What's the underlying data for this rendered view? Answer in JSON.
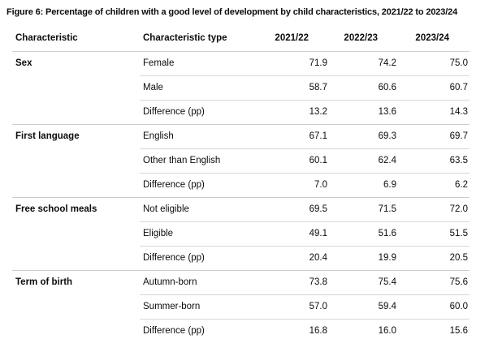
{
  "figure": {
    "title": "Figure 6: Percentage of children with a good level of development by child characteristics, 2021/22 to 2023/24"
  },
  "colors": {
    "text": "#0b0c0c",
    "row_border": "#d6d8d9",
    "group_border": "#cbcecf",
    "bottom_border": "#c6c9ca",
    "background": "#ffffff"
  },
  "chart_data": {
    "type": "table",
    "title": "Figure 6: Percentage of children with a good level of development by child characteristics, 2021/22 to 2023/24",
    "columns": [
      "Characteristic",
      "Characteristic type",
      "2021/22",
      "2022/23",
      "2023/24"
    ],
    "groups": [
      {
        "characteristic": "Sex",
        "rows": [
          {
            "type": "Female",
            "values": [
              "71.9",
              "74.2",
              "75.0"
            ]
          },
          {
            "type": "Male",
            "values": [
              "58.7",
              "60.6",
              "60.7"
            ]
          },
          {
            "type": "Difference (pp)",
            "values": [
              "13.2",
              "13.6",
              "14.3"
            ]
          }
        ]
      },
      {
        "characteristic": "First language",
        "rows": [
          {
            "type": "English",
            "values": [
              "67.1",
              "69.3",
              "69.7"
            ]
          },
          {
            "type": "Other than English",
            "values": [
              "60.1",
              "62.4",
              "63.5"
            ]
          },
          {
            "type": "Difference (pp)",
            "values": [
              "7.0",
              "6.9",
              "6.2"
            ]
          }
        ]
      },
      {
        "characteristic": "Free school meals",
        "rows": [
          {
            "type": "Not eligible",
            "values": [
              "69.5",
              "71.5",
              "72.0"
            ]
          },
          {
            "type": "Eligible",
            "values": [
              "49.1",
              "51.6",
              "51.5"
            ]
          },
          {
            "type": "Difference (pp)",
            "values": [
              "20.4",
              "19.9",
              "20.5"
            ]
          }
        ]
      },
      {
        "characteristic": "Term of birth",
        "rows": [
          {
            "type": "Autumn-born",
            "values": [
              "73.8",
              "75.4",
              "75.6"
            ]
          },
          {
            "type": "Summer-born",
            "values": [
              "57.0",
              "59.4",
              "60.0"
            ]
          },
          {
            "type": "Difference (pp)",
            "values": [
              "16.8",
              "16.0",
              "15.6"
            ]
          }
        ]
      }
    ]
  }
}
